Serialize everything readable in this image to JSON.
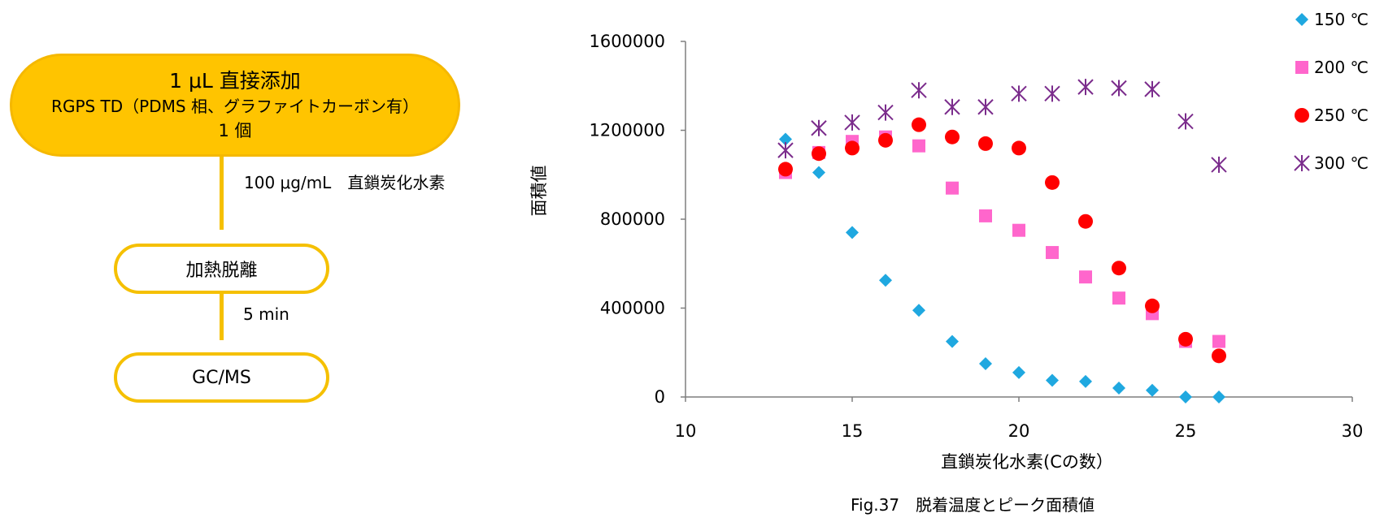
{
  "flowchart": {
    "step1": {
      "line1": "1 μL 直接添加",
      "line2": "RGPS TD（PDMS 相、グラファイトカーボン有）",
      "line3": "1 個"
    },
    "label1": "100 μg/mL　直鎖炭化水素",
    "step2": "加熱脱離",
    "label2": "5 min",
    "step3": "GC/MS"
  },
  "caption": "Fig.37　脱着温度とピーク面積値",
  "colors": {
    "flow_fill": "#FFC400",
    "flow_border": "#F5C000"
  },
  "chart_data": {
    "type": "scatter",
    "xlabel": "直鎖炭化水素(Cの数）",
    "ylabel": "面積値",
    "xlim": [
      10,
      30
    ],
    "ylim": [
      0,
      1600000
    ],
    "x_ticks": [
      10,
      15,
      20,
      25,
      30
    ],
    "y_ticks": [
      0,
      400000,
      800000,
      1200000,
      1600000
    ],
    "x_tick_labels": [
      "10",
      "15",
      "20",
      "25",
      "30"
    ],
    "y_tick_labels": [
      "0",
      "400000",
      "800000",
      "1200000",
      "1600000"
    ],
    "grid": false,
    "legend_position": "top-right",
    "series": [
      {
        "name": "150 ℃",
        "marker": "diamond",
        "color": "#1FA8E0",
        "points": [
          [
            13,
            1160000
          ],
          [
            14,
            1010000
          ],
          [
            15,
            740000
          ],
          [
            16,
            525000
          ],
          [
            17,
            390000
          ],
          [
            18,
            250000
          ],
          [
            19,
            150000
          ],
          [
            20,
            110000
          ],
          [
            21,
            75000
          ],
          [
            22,
            70000
          ],
          [
            23,
            40000
          ],
          [
            24,
            30000
          ],
          [
            25,
            0
          ],
          [
            26,
            0
          ]
        ]
      },
      {
        "name": "200 ℃",
        "marker": "square",
        "color": "#FF66CC",
        "points": [
          [
            13,
            1010000
          ],
          [
            14,
            1100000
          ],
          [
            15,
            1150000
          ],
          [
            16,
            1170000
          ],
          [
            17,
            1130000
          ],
          [
            18,
            940000
          ],
          [
            19,
            815000
          ],
          [
            20,
            750000
          ],
          [
            21,
            650000
          ],
          [
            22,
            540000
          ],
          [
            23,
            445000
          ],
          [
            24,
            375000
          ],
          [
            25,
            250000
          ],
          [
            26,
            250000
          ]
        ]
      },
      {
        "name": "250 ℃",
        "marker": "circle",
        "color": "#FF0000",
        "points": [
          [
            13,
            1025000
          ],
          [
            14,
            1095000
          ],
          [
            15,
            1120000
          ],
          [
            16,
            1155000
          ],
          [
            17,
            1225000
          ],
          [
            18,
            1170000
          ],
          [
            19,
            1140000
          ],
          [
            20,
            1120000
          ],
          [
            21,
            965000
          ],
          [
            22,
            790000
          ],
          [
            23,
            580000
          ],
          [
            24,
            410000
          ],
          [
            25,
            260000
          ],
          [
            26,
            185000
          ]
        ]
      },
      {
        "name": "300 ℃",
        "marker": "asterisk",
        "color": "#7B2C8C",
        "points": [
          [
            13,
            1110000
          ],
          [
            14,
            1210000
          ],
          [
            15,
            1235000
          ],
          [
            16,
            1280000
          ],
          [
            17,
            1380000
          ],
          [
            18,
            1305000
          ],
          [
            19,
            1305000
          ],
          [
            20,
            1365000
          ],
          [
            21,
            1365000
          ],
          [
            22,
            1395000
          ],
          [
            23,
            1390000
          ],
          [
            24,
            1385000
          ],
          [
            25,
            1240000
          ],
          [
            26,
            1045000
          ]
        ]
      }
    ]
  }
}
